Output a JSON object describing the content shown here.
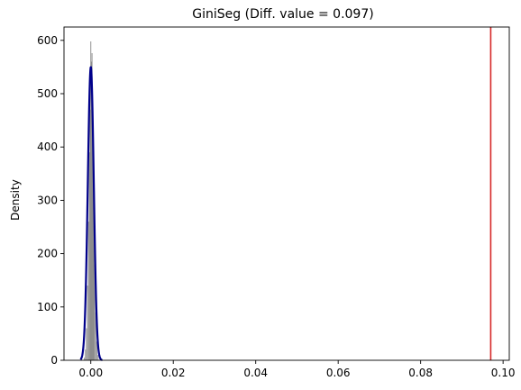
{
  "chart_data": {
    "type": "histogram",
    "title": "GiniSeg (Diff. value = 0.097)",
    "xlabel": "",
    "ylabel": "Density",
    "xlim": [
      -0.0065,
      0.1015
    ],
    "ylim": [
      0,
      625
    ],
    "x_ticks": [
      0.0,
      0.02,
      0.04,
      0.06,
      0.08,
      0.1
    ],
    "x_tick_labels": [
      "0.00",
      "0.02",
      "0.04",
      "0.06",
      "0.08",
      "0.10"
    ],
    "y_ticks": [
      0,
      100,
      200,
      300,
      400,
      500,
      600
    ],
    "y_tick_labels": [
      "0",
      "100",
      "200",
      "300",
      "400",
      "500",
      "600"
    ],
    "grid": false,
    "histogram": {
      "color": "#808080",
      "bin_width": 0.00012,
      "bins": [
        {
          "x": -0.0016,
          "y": 5
        },
        {
          "x": -0.00135,
          "y": 20
        },
        {
          "x": -0.0011,
          "y": 60
        },
        {
          "x": -0.00085,
          "y": 140
        },
        {
          "x": -0.0006,
          "y": 260
        },
        {
          "x": -0.0004,
          "y": 390
        },
        {
          "x": -0.0002,
          "y": 470
        },
        {
          "x": -5e-05,
          "y": 598
        },
        {
          "x": 0.0001,
          "y": 560
        },
        {
          "x": 0.00025,
          "y": 576
        },
        {
          "x": 0.0004,
          "y": 455
        },
        {
          "x": 0.00055,
          "y": 400
        },
        {
          "x": 0.0007,
          "y": 290
        },
        {
          "x": 0.0009,
          "y": 180
        },
        {
          "x": 0.00115,
          "y": 90
        },
        {
          "x": 0.0014,
          "y": 35
        },
        {
          "x": 0.0017,
          "y": 10
        }
      ]
    },
    "density_curve": {
      "color": "#00008b",
      "mean": 0.0,
      "peak_density": 550,
      "x_range": [
        -0.0025,
        0.0028
      ]
    },
    "reference_line": {
      "x": 0.097,
      "color": "#d62728"
    }
  }
}
